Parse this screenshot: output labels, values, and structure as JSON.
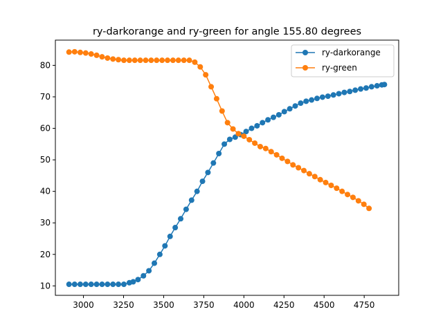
{
  "chart_data": {
    "type": "line",
    "title": "ry-darkorange and ry-green for angle 155.80 degrees",
    "xlabel": "",
    "ylabel": "",
    "xlim": [
      2825,
      4965
    ],
    "ylim": [
      7,
      88
    ],
    "x_ticks": [
      3000,
      3250,
      3500,
      3750,
      4000,
      4250,
      4500,
      4750
    ],
    "y_ticks": [
      10,
      20,
      30,
      40,
      50,
      60,
      70,
      80
    ],
    "grid": false,
    "legend": "top-right",
    "series": [
      {
        "name": "ry-darkorange",
        "color": "#1f77b4",
        "marker": "circle",
        "x": [
          2910,
          2945,
          2980,
          3014,
          3048,
          3082,
          3116,
          3150,
          3184,
          3218,
          3252,
          3286,
          3310,
          3340,
          3374,
          3408,
          3442,
          3476,
          3508,
          3540,
          3572,
          3606,
          3640,
          3674,
          3708,
          3742,
          3776,
          3810,
          3844,
          3878,
          3912,
          3946,
          3980,
          4014,
          4048,
          4082,
          4116,
          4150,
          4184,
          4218,
          4252,
          4286,
          4320,
          4354,
          4388,
          4422,
          4456,
          4490,
          4524,
          4558,
          4592,
          4626,
          4660,
          4694,
          4728,
          4762,
          4796,
          4830,
          4860,
          4876
        ],
        "y": [
          10.5,
          10.5,
          10.5,
          10.5,
          10.5,
          10.5,
          10.5,
          10.5,
          10.5,
          10.5,
          10.5,
          11.0,
          11.3,
          12.0,
          13.2,
          14.8,
          17.2,
          20.0,
          22.7,
          25.7,
          28.5,
          31.3,
          34.3,
          37.2,
          40.0,
          43.2,
          46.0,
          49.0,
          52.0,
          55.0,
          56.5,
          57.2,
          58.0,
          59.0,
          60.0,
          60.8,
          61.8,
          62.7,
          63.5,
          64.3,
          65.3,
          66.2,
          67.1,
          68.0,
          68.6,
          69.0,
          69.5,
          69.9,
          70.2,
          70.6,
          71.0,
          71.4,
          71.7,
          72.1,
          72.5,
          72.8,
          73.2,
          73.5,
          73.8,
          73.9
        ]
      },
      {
        "name": "ry-green",
        "color": "#ff7f0e",
        "marker": "circle",
        "x": [
          2910,
          2945,
          2980,
          3014,
          3048,
          3082,
          3116,
          3150,
          3184,
          3218,
          3252,
          3286,
          3320,
          3354,
          3388,
          3422,
          3456,
          3490,
          3524,
          3558,
          3592,
          3626,
          3660,
          3694,
          3728,
          3762,
          3796,
          3830,
          3864,
          3898,
          3932,
          3966,
          4000,
          4034,
          4068,
          4102,
          4136,
          4170,
          4204,
          4238,
          4272,
          4306,
          4340,
          4374,
          4408,
          4442,
          4476,
          4510,
          4544,
          4578,
          4612,
          4646,
          4680,
          4714,
          4748,
          4780
        ],
        "y": [
          84.2,
          84.3,
          84.1,
          83.9,
          83.6,
          83.2,
          82.7,
          82.3,
          82.0,
          81.8,
          81.6,
          81.6,
          81.6,
          81.6,
          81.6,
          81.6,
          81.6,
          81.6,
          81.6,
          81.6,
          81.6,
          81.6,
          81.6,
          81.0,
          79.5,
          77.0,
          73.2,
          69.4,
          65.5,
          61.8,
          59.8,
          58.3,
          57.5,
          56.4,
          55.3,
          54.2,
          53.6,
          52.6,
          51.6,
          50.5,
          49.5,
          48.4,
          47.5,
          46.6,
          45.6,
          44.7,
          43.7,
          42.8,
          41.9,
          41.0,
          40.0,
          39.0,
          38.1,
          37.0,
          35.9,
          34.6
        ]
      }
    ]
  }
}
